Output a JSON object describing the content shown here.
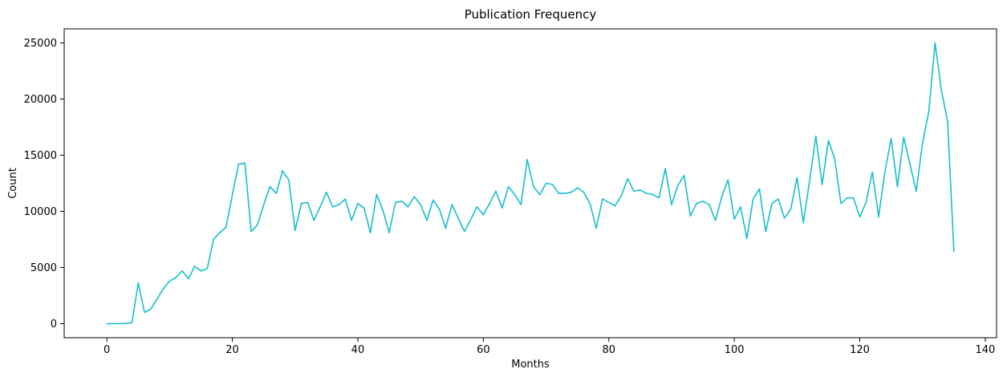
{
  "chart_data": {
    "type": "line",
    "title": "Publication Frequency",
    "xlabel": "Months",
    "ylabel": "Count",
    "xlim": [
      -6.8,
      141.8
    ],
    "ylim": [
      -1250,
      26250
    ],
    "x_ticks": [
      0,
      20,
      40,
      60,
      80,
      100,
      120,
      140
    ],
    "y_ticks": [
      0,
      5000,
      10000,
      15000,
      20000,
      25000
    ],
    "grid": false,
    "legend": "none",
    "series": [
      {
        "color": "#17becf",
        "values": [
          0,
          0,
          0,
          30,
          80,
          3600,
          1000,
          1300,
          2200,
          3100,
          3800,
          4100,
          4700,
          4000,
          5100,
          4700,
          4900,
          7500,
          8100,
          8600,
          11500,
          14200,
          14300,
          8200,
          8800,
          10600,
          12200,
          11600,
          13600,
          12800,
          8300,
          10700,
          10800,
          9200,
          10400,
          11700,
          10400,
          10600,
          11100,
          9200,
          10700,
          10300,
          8100,
          11500,
          10100,
          8100,
          10800,
          10900,
          10400,
          11300,
          10600,
          9200,
          11000,
          10200,
          8500,
          10600,
          9400,
          8200,
          9300,
          10400,
          9700,
          10700,
          11800,
          10300,
          12200,
          11500,
          10600,
          14600,
          12200,
          11500,
          12500,
          12400,
          11600,
          11600,
          11700,
          12100,
          11700,
          10700,
          8500,
          11100,
          10800,
          10500,
          11400,
          12900,
          11800,
          11900,
          11600,
          11500,
          11200,
          13800,
          10600,
          12300,
          13200,
          9600,
          10700,
          10900,
          10600,
          9200,
          11300,
          12800,
          9300,
          10400,
          7600,
          11100,
          12000,
          8200,
          10700,
          11100,
          9400,
          10200,
          13000,
          9000,
          12700,
          16700,
          12400,
          16300,
          14700,
          10700,
          11200,
          11200,
          9500,
          10800,
          13500,
          9500,
          13500,
          16500,
          12200,
          16600,
          14200,
          11800,
          16100,
          18900,
          25000,
          20800,
          18000,
          6400
        ]
      }
    ]
  }
}
